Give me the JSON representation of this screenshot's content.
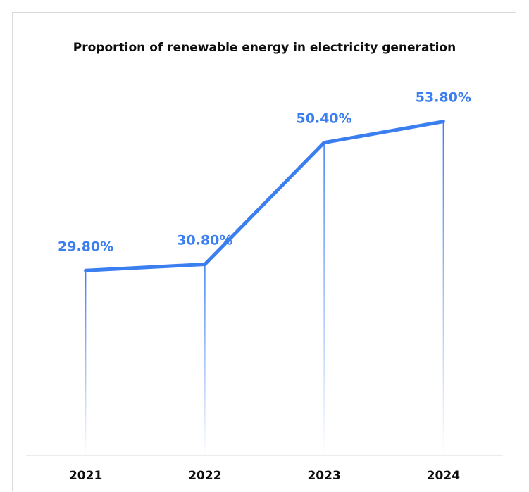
{
  "chart_data": {
    "type": "line",
    "title": "Proportion of renewable energy in electricity generation",
    "xlabel": "",
    "ylabel": "",
    "categories": [
      "2021",
      "2022",
      "2023",
      "2024"
    ],
    "values": [
      29.8,
      30.8,
      50.4,
      53.8
    ],
    "data_labels": [
      "29.80%",
      "30.80%",
      "50.40%",
      "53.80%"
    ],
    "unit": "%",
    "ylim": [
      0,
      60
    ],
    "grid": false,
    "legend": "none",
    "drop_lines": true,
    "colors": {
      "line": "#3b7ef0",
      "label": "#3b7ef0",
      "axis": "#d9d9d9",
      "text": "#0d0d0d"
    }
  }
}
